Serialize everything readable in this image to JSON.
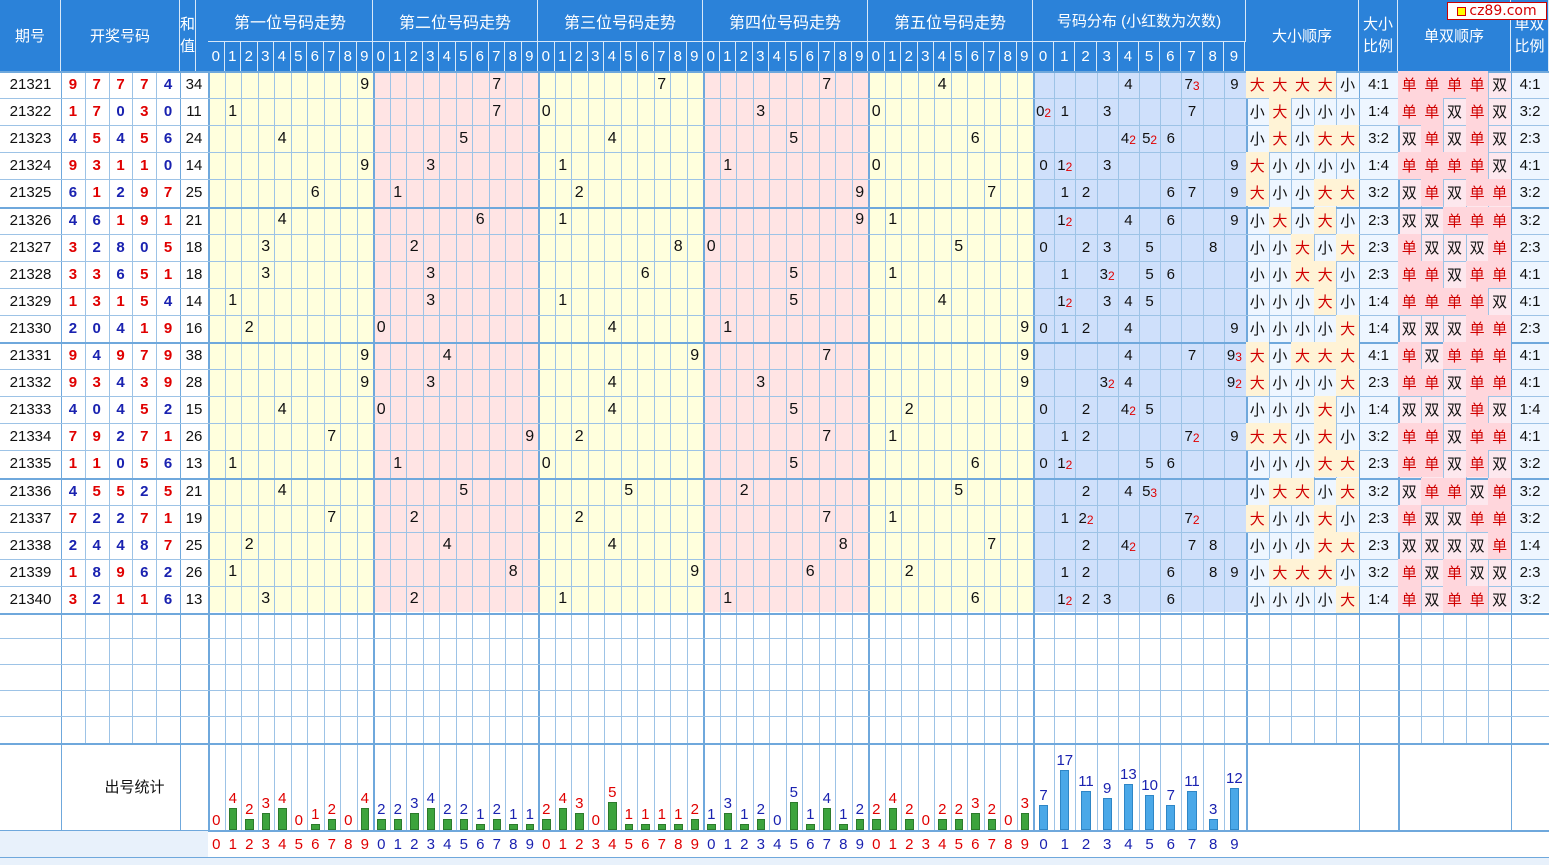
{
  "logo_text": "cz89.com",
  "headers": {
    "period": "期号",
    "numbers": "开奖号码",
    "sum": "和值",
    "pos": [
      "第一位号码走势",
      "第二位号码走势",
      "第三位号码走势",
      "第四位号码走势",
      "第五位号码走势"
    ],
    "dist": "号码分布 (小红数为次数)",
    "bigsmall_seq": "大小顺序",
    "bigsmall_ratio": "大小比例",
    "oddeven_seq": "单双顺序",
    "oddeven_ratio": "单双比例",
    "digits": [
      "0",
      "1",
      "2",
      "3",
      "4",
      "5",
      "6",
      "7",
      "8",
      "9"
    ]
  },
  "rows": [
    {
      "period": "21321",
      "nums": [
        "9",
        "7",
        "7",
        "7",
        "4"
      ],
      "sum": "34",
      "bs": [
        "大",
        "大",
        "大",
        "大",
        "小"
      ],
      "bs_ratio": "4:1",
      "oe": [
        "单",
        "单",
        "单",
        "单",
        "双"
      ],
      "oe_ratio": "4:1"
    },
    {
      "period": "21322",
      "nums": [
        "1",
        "7",
        "0",
        "3",
        "0"
      ],
      "sum": "11",
      "bs": [
        "小",
        "大",
        "小",
        "小",
        "小"
      ],
      "bs_ratio": "1:4",
      "oe": [
        "单",
        "单",
        "双",
        "单",
        "双"
      ],
      "oe_ratio": "3:2"
    },
    {
      "period": "21323",
      "nums": [
        "4",
        "5",
        "4",
        "5",
        "6"
      ],
      "sum": "24",
      "bs": [
        "小",
        "大",
        "小",
        "大",
        "大"
      ],
      "bs_ratio": "3:2",
      "oe": [
        "双",
        "单",
        "双",
        "单",
        "双"
      ],
      "oe_ratio": "2:3"
    },
    {
      "period": "21324",
      "nums": [
        "9",
        "3",
        "1",
        "1",
        "0"
      ],
      "sum": "14",
      "bs": [
        "大",
        "小",
        "小",
        "小",
        "小"
      ],
      "bs_ratio": "1:4",
      "oe": [
        "单",
        "单",
        "单",
        "单",
        "双"
      ],
      "oe_ratio": "4:1"
    },
    {
      "period": "21325",
      "nums": [
        "6",
        "1",
        "2",
        "9",
        "7"
      ],
      "sum": "25",
      "bs": [
        "大",
        "小",
        "小",
        "大",
        "大"
      ],
      "bs_ratio": "3:2",
      "oe": [
        "双",
        "单",
        "双",
        "单",
        "单"
      ],
      "oe_ratio": "3:2"
    },
    {
      "period": "21326",
      "nums": [
        "4",
        "6",
        "1",
        "9",
        "1"
      ],
      "sum": "21",
      "bs": [
        "小",
        "大",
        "小",
        "大",
        "小"
      ],
      "bs_ratio": "2:3",
      "oe": [
        "双",
        "双",
        "单",
        "单",
        "单"
      ],
      "oe_ratio": "3:2"
    },
    {
      "period": "21327",
      "nums": [
        "3",
        "2",
        "8",
        "0",
        "5"
      ],
      "sum": "18",
      "bs": [
        "小",
        "小",
        "大",
        "小",
        "大"
      ],
      "bs_ratio": "2:3",
      "oe": [
        "单",
        "双",
        "双",
        "双",
        "单"
      ],
      "oe_ratio": "2:3"
    },
    {
      "period": "21328",
      "nums": [
        "3",
        "3",
        "6",
        "5",
        "1"
      ],
      "sum": "18",
      "bs": [
        "小",
        "小",
        "大",
        "大",
        "小"
      ],
      "bs_ratio": "2:3",
      "oe": [
        "单",
        "单",
        "双",
        "单",
        "单"
      ],
      "oe_ratio": "4:1"
    },
    {
      "period": "21329",
      "nums": [
        "1",
        "3",
        "1",
        "5",
        "4"
      ],
      "sum": "14",
      "bs": [
        "小",
        "小",
        "小",
        "大",
        "小"
      ],
      "bs_ratio": "1:4",
      "oe": [
        "单",
        "单",
        "单",
        "单",
        "双"
      ],
      "oe_ratio": "4:1"
    },
    {
      "period": "21330",
      "nums": [
        "2",
        "0",
        "4",
        "1",
        "9"
      ],
      "sum": "16",
      "bs": [
        "小",
        "小",
        "小",
        "小",
        "大"
      ],
      "bs_ratio": "1:4",
      "oe": [
        "双",
        "双",
        "双",
        "单",
        "单"
      ],
      "oe_ratio": "2:3"
    },
    {
      "period": "21331",
      "nums": [
        "9",
        "4",
        "9",
        "7",
        "9"
      ],
      "sum": "38",
      "bs": [
        "大",
        "小",
        "大",
        "大",
        "大"
      ],
      "bs_ratio": "4:1",
      "oe": [
        "单",
        "双",
        "单",
        "单",
        "单"
      ],
      "oe_ratio": "4:1"
    },
    {
      "period": "21332",
      "nums": [
        "9",
        "3",
        "4",
        "3",
        "9"
      ],
      "sum": "28",
      "bs": [
        "大",
        "小",
        "小",
        "小",
        "大"
      ],
      "bs_ratio": "2:3",
      "oe": [
        "单",
        "单",
        "双",
        "单",
        "单"
      ],
      "oe_ratio": "4:1"
    },
    {
      "period": "21333",
      "nums": [
        "4",
        "0",
        "4",
        "5",
        "2"
      ],
      "sum": "15",
      "bs": [
        "小",
        "小",
        "小",
        "大",
        "小"
      ],
      "bs_ratio": "1:4",
      "oe": [
        "双",
        "双",
        "双",
        "单",
        "双"
      ],
      "oe_ratio": "1:4"
    },
    {
      "period": "21334",
      "nums": [
        "7",
        "9",
        "2",
        "7",
        "1"
      ],
      "sum": "26",
      "bs": [
        "大",
        "大",
        "小",
        "大",
        "小"
      ],
      "bs_ratio": "3:2",
      "oe": [
        "单",
        "单",
        "双",
        "单",
        "单"
      ],
      "oe_ratio": "4:1"
    },
    {
      "period": "21335",
      "nums": [
        "1",
        "1",
        "0",
        "5",
        "6"
      ],
      "sum": "13",
      "bs": [
        "小",
        "小",
        "小",
        "大",
        "大"
      ],
      "bs_ratio": "2:3",
      "oe": [
        "单",
        "单",
        "双",
        "单",
        "双"
      ],
      "oe_ratio": "3:2"
    },
    {
      "period": "21336",
      "nums": [
        "4",
        "5",
        "5",
        "2",
        "5"
      ],
      "sum": "21",
      "bs": [
        "小",
        "大",
        "大",
        "小",
        "大"
      ],
      "bs_ratio": "3:2",
      "oe": [
        "双",
        "单",
        "单",
        "双",
        "单"
      ],
      "oe_ratio": "3:2"
    },
    {
      "period": "21337",
      "nums": [
        "7",
        "2",
        "2",
        "7",
        "1"
      ],
      "sum": "19",
      "bs": [
        "大",
        "小",
        "小",
        "大",
        "小"
      ],
      "bs_ratio": "2:3",
      "oe": [
        "单",
        "双",
        "双",
        "单",
        "单"
      ],
      "oe_ratio": "3:2"
    },
    {
      "period": "21338",
      "nums": [
        "2",
        "4",
        "4",
        "8",
        "7"
      ],
      "sum": "25",
      "bs": [
        "小",
        "小",
        "小",
        "大",
        "大"
      ],
      "bs_ratio": "2:3",
      "oe": [
        "双",
        "双",
        "双",
        "双",
        "单"
      ],
      "oe_ratio": "1:4"
    },
    {
      "period": "21339",
      "nums": [
        "1",
        "8",
        "9",
        "6",
        "2"
      ],
      "sum": "26",
      "bs": [
        "小",
        "大",
        "大",
        "大",
        "小"
      ],
      "bs_ratio": "3:2",
      "oe": [
        "单",
        "双",
        "单",
        "双",
        "双"
      ],
      "oe_ratio": "2:3"
    },
    {
      "period": "21340",
      "nums": [
        "3",
        "2",
        "1",
        "1",
        "6"
      ],
      "sum": "13",
      "bs": [
        "小",
        "小",
        "小",
        "小",
        "大"
      ],
      "bs_ratio": "1:4",
      "oe": [
        "单",
        "双",
        "单",
        "单",
        "双"
      ],
      "oe_ratio": "3:2"
    }
  ],
  "stats": {
    "label": "出号统计",
    "pos_counts": [
      [
        0,
        4,
        2,
        3,
        4,
        0,
        1,
        2,
        0,
        4
      ],
      [
        2,
        2,
        3,
        4,
        2,
        2,
        1,
        2,
        1,
        1
      ],
      [
        2,
        4,
        3,
        0,
        5,
        1,
        1,
        1,
        1,
        2
      ],
      [
        1,
        3,
        1,
        2,
        0,
        5,
        1,
        4,
        1,
        2
      ],
      [
        2,
        4,
        2,
        0,
        2,
        2,
        3,
        2,
        0,
        3
      ]
    ],
    "dist_counts": [
      7,
      17,
      11,
      9,
      13,
      10,
      7,
      11,
      3,
      12
    ]
  },
  "colors": {
    "header_blue": "#2b82d9",
    "grid_line": "#9dc3e6",
    "row_sep": "#6fa8dc",
    "yellow_bg": "#ffffdd",
    "pink_bg": "#ffe4e4",
    "dist_bg": "#cfe0fb",
    "num_blue": "#1a22b0",
    "num_red": "#e00000",
    "bar_green": "#3da33d",
    "bar_blue": "#4aa8e8"
  }
}
